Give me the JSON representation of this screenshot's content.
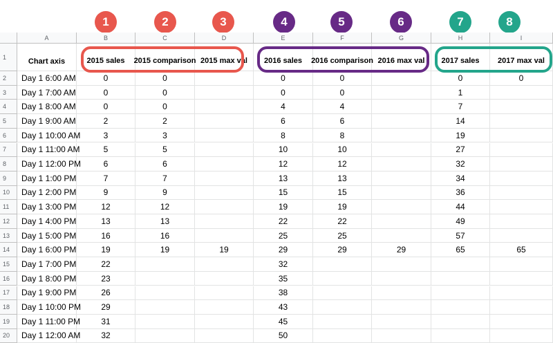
{
  "colors": {
    "red": "#e8574d",
    "purple": "#672a86",
    "teal": "#23a58b"
  },
  "badges": [
    "1",
    "2",
    "3",
    "4",
    "5",
    "6",
    "7",
    "8"
  ],
  "columns": [
    "A",
    "B",
    "C",
    "D",
    "E",
    "F",
    "G",
    "H",
    "I"
  ],
  "header": {
    "row_num": "1",
    "A": "Chart axis",
    "B": "2015 sales",
    "C": "2015 comparison",
    "D": "2015 max val",
    "E": "2016 sales",
    "F": "2016 comparison",
    "G": "2016 max val",
    "H": "2017 sales",
    "I": "2017 max val"
  },
  "rows": [
    {
      "n": "2",
      "a": "Day 1 6:00 AM",
      "b": "0",
      "c": "0",
      "d": "",
      "e": "0",
      "f": "0",
      "g": "",
      "h": "0",
      "i": "0"
    },
    {
      "n": "3",
      "a": "Day 1 7:00 AM",
      "b": "0",
      "c": "0",
      "d": "",
      "e": "0",
      "f": "0",
      "g": "",
      "h": "1",
      "i": ""
    },
    {
      "n": "4",
      "a": "Day 1 8:00 AM",
      "b": "0",
      "c": "0",
      "d": "",
      "e": "4",
      "f": "4",
      "g": "",
      "h": "7",
      "i": ""
    },
    {
      "n": "5",
      "a": "Day 1 9:00 AM",
      "b": "2",
      "c": "2",
      "d": "",
      "e": "6",
      "f": "6",
      "g": "",
      "h": "14",
      "i": ""
    },
    {
      "n": "6",
      "a": "Day 1 10:00 AM",
      "b": "3",
      "c": "3",
      "d": "",
      "e": "8",
      "f": "8",
      "g": "",
      "h": "19",
      "i": ""
    },
    {
      "n": "7",
      "a": "Day 1 11:00 AM",
      "b": "5",
      "c": "5",
      "d": "",
      "e": "10",
      "f": "10",
      "g": "",
      "h": "27",
      "i": ""
    },
    {
      "n": "8",
      "a": "Day 1 12:00 PM",
      "b": "6",
      "c": "6",
      "d": "",
      "e": "12",
      "f": "12",
      "g": "",
      "h": "32",
      "i": ""
    },
    {
      "n": "9",
      "a": "Day 1 1:00 PM",
      "b": "7",
      "c": "7",
      "d": "",
      "e": "13",
      "f": "13",
      "g": "",
      "h": "34",
      "i": ""
    },
    {
      "n": "10",
      "a": "Day 1 2:00 PM",
      "b": "9",
      "c": "9",
      "d": "",
      "e": "15",
      "f": "15",
      "g": "",
      "h": "36",
      "i": ""
    },
    {
      "n": "11",
      "a": "Day 1 3:00 PM",
      "b": "12",
      "c": "12",
      "d": "",
      "e": "19",
      "f": "19",
      "g": "",
      "h": "44",
      "i": ""
    },
    {
      "n": "12",
      "a": "Day 1 4:00 PM",
      "b": "13",
      "c": "13",
      "d": "",
      "e": "22",
      "f": "22",
      "g": "",
      "h": "49",
      "i": ""
    },
    {
      "n": "13",
      "a": "Day 1 5:00 PM",
      "b": "16",
      "c": "16",
      "d": "",
      "e": "25",
      "f": "25",
      "g": "",
      "h": "57",
      "i": ""
    },
    {
      "n": "14",
      "a": "Day 1 6:00 PM",
      "b": "19",
      "c": "19",
      "d": "19",
      "e": "29",
      "f": "29",
      "g": "29",
      "h": "65",
      "i": "65"
    },
    {
      "n": "15",
      "a": "Day 1 7:00 PM",
      "b": "22",
      "c": "",
      "d": "",
      "e": "32",
      "f": "",
      "g": "",
      "h": "",
      "i": ""
    },
    {
      "n": "16",
      "a": "Day 1 8:00 PM",
      "b": "23",
      "c": "",
      "d": "",
      "e": "35",
      "f": "",
      "g": "",
      "h": "",
      "i": ""
    },
    {
      "n": "17",
      "a": "Day 1 9:00 PM",
      "b": "26",
      "c": "",
      "d": "",
      "e": "38",
      "f": "",
      "g": "",
      "h": "",
      "i": ""
    },
    {
      "n": "18",
      "a": "Day 1 10:00 PM",
      "b": "29",
      "c": "",
      "d": "",
      "e": "43",
      "f": "",
      "g": "",
      "h": "",
      "i": ""
    },
    {
      "n": "19",
      "a": "Day 1 11:00 PM",
      "b": "31",
      "c": "",
      "d": "",
      "e": "45",
      "f": "",
      "g": "",
      "h": "",
      "i": ""
    },
    {
      "n": "20",
      "a": "Day 1 12:00 AM",
      "b": "32",
      "c": "",
      "d": "",
      "e": "50",
      "f": "",
      "g": "",
      "h": "",
      "i": ""
    }
  ]
}
